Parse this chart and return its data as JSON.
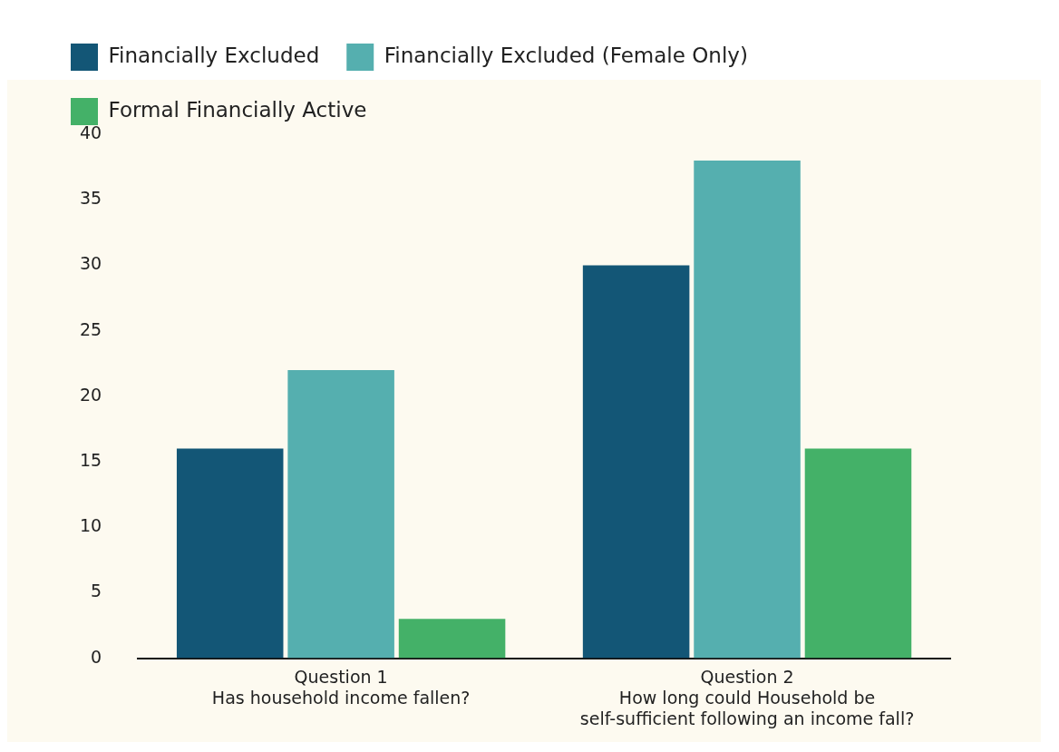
{
  "chart_data": {
    "type": "bar",
    "categories": [
      "Question 1\nHas household income fallen?",
      "Question 2\nHow long could Household be\nself-sufficient following an income fall?"
    ],
    "series": [
      {
        "name": "Financially Excluded",
        "color": "#135676",
        "values": [
          16,
          30
        ]
      },
      {
        "name": "Financially Excluded (Female Only)",
        "color": "#55afaf",
        "values": [
          22,
          38
        ]
      },
      {
        "name": "Formal Financially Active",
        "color": "#44b168",
        "values": [
          3,
          16
        ]
      }
    ],
    "ylim": [
      0,
      40
    ],
    "yticks": [
      0,
      5,
      10,
      15,
      20,
      25,
      30,
      35,
      40
    ],
    "grid": false,
    "legend": "top"
  }
}
